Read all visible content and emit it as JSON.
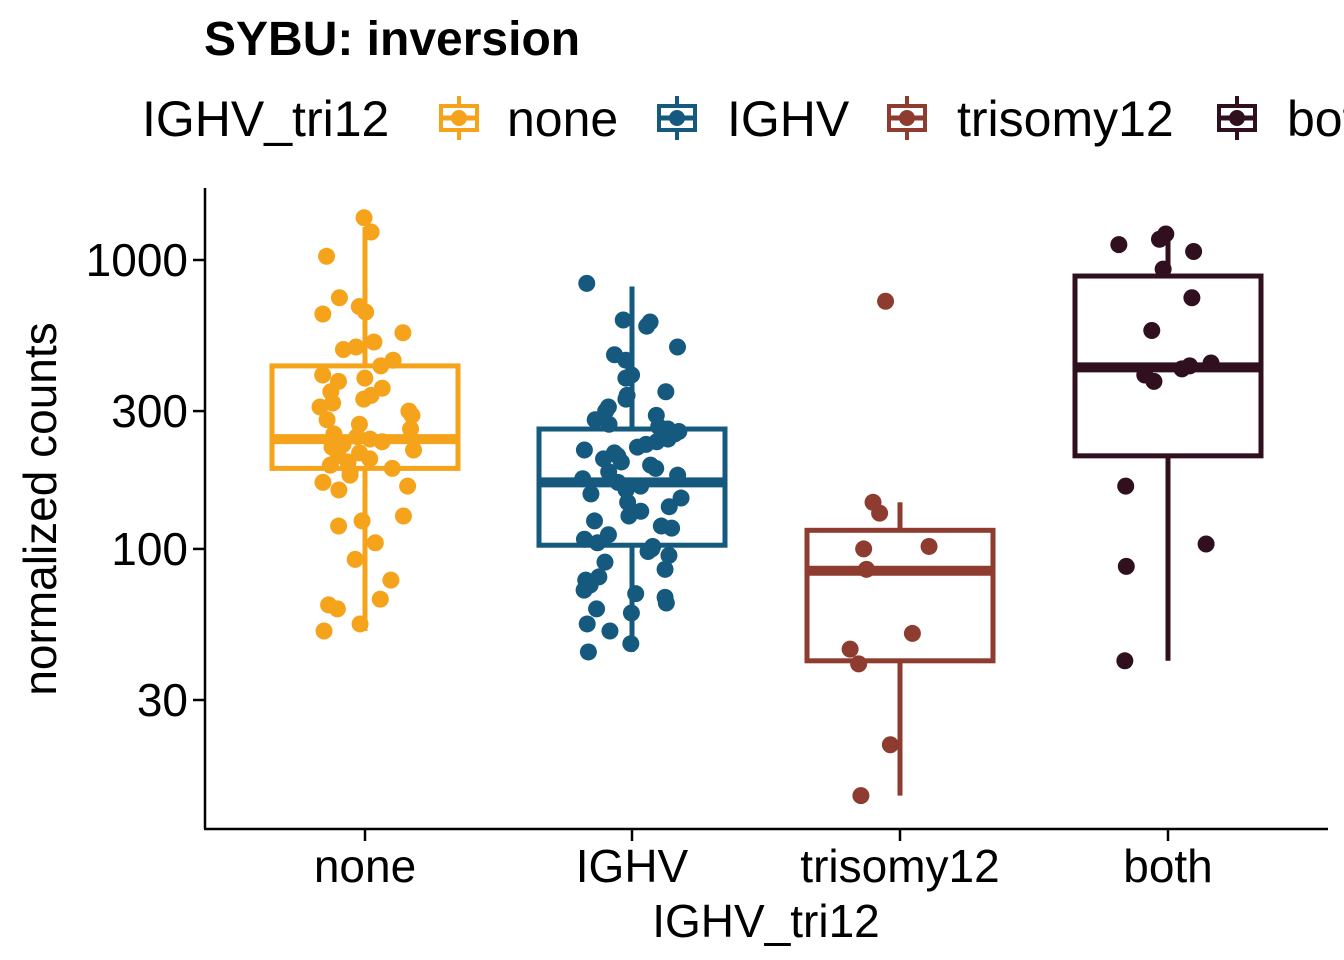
{
  "chart_data": {
    "type": "box",
    "title": "SYBU: inversion",
    "xlabel": "IGHV_tri12",
    "ylabel": "normalized counts",
    "y_scale": "log10",
    "ylim": [
      14,
      1650
    ],
    "y_ticks": [
      30,
      100,
      300,
      1000
    ],
    "y_tick_labels": [
      "30",
      "100",
      "300",
      "1000"
    ],
    "categories": [
      "none",
      "IGHV",
      "trisomy12",
      "both"
    ],
    "legend": {
      "title": "IGHV_tri12",
      "position": "top",
      "entries": [
        "none",
        "IGHV",
        "trisomy12",
        "both"
      ]
    },
    "grid": false,
    "colors": {
      "none": "#F5A31A",
      "IGHV": "#155A7E",
      "trisomy12": "#8E3B30",
      "both": "#30101E"
    },
    "series": [
      {
        "name": "none",
        "box": {
          "whisker_low": 52,
          "q1": 190,
          "median": 240,
          "q3": 430,
          "whisker_high": 1300
        },
        "points": [
          1400,
          1250,
          1030,
          740,
          690,
          660,
          650,
          560,
          520,
          500,
          490,
          450,
          430,
          400,
          390,
          380,
          360,
          350,
          340,
          330,
          320,
          310,
          300,
          290,
          280,
          270,
          260,
          250,
          245,
          240,
          235,
          230,
          225,
          220,
          215,
          210,
          205,
          200,
          195,
          190,
          185,
          180,
          170,
          165,
          160,
          130,
          125,
          120,
          105,
          92,
          78,
          67,
          64,
          62,
          55,
          52
        ]
      },
      {
        "name": "IGHV",
        "box": {
          "whisker_low": 44,
          "q1": 103,
          "median": 170,
          "q3": 260,
          "whisker_high": 810
        },
        "points": [
          830,
          620,
          610,
          590,
          500,
          470,
          450,
          400,
          390,
          350,
          340,
          330,
          310,
          300,
          290,
          280,
          270,
          265,
          260,
          255,
          250,
          240,
          235,
          230,
          225,
          220,
          215,
          210,
          205,
          200,
          195,
          190,
          185,
          180,
          175,
          170,
          165,
          160,
          155,
          150,
          145,
          140,
          135,
          130,
          125,
          120,
          118,
          112,
          108,
          105,
          102,
          100,
          98,
          95,
          90,
          85,
          80,
          78,
          75,
          72,
          70,
          68,
          65,
          62,
          60,
          55,
          52,
          47,
          44
        ]
      },
      {
        "name": "trisomy12",
        "box": {
          "whisker_low": 14,
          "q1": 41,
          "median": 84,
          "q3": 116,
          "whisker_high": 145
        },
        "points": [
          720,
          145,
          133,
          102,
          100,
          85,
          45,
          51,
          40,
          21,
          14
        ]
      },
      {
        "name": "both",
        "box": {
          "whisker_low": 41,
          "q1": 210,
          "median": 425,
          "q3": 880,
          "whisker_high": 1230
        },
        "points": [
          1230,
          1180,
          1130,
          1070,
          930,
          740,
          570,
          440,
          430,
          420,
          400,
          380,
          165,
          104,
          87,
          41
        ]
      }
    ]
  }
}
